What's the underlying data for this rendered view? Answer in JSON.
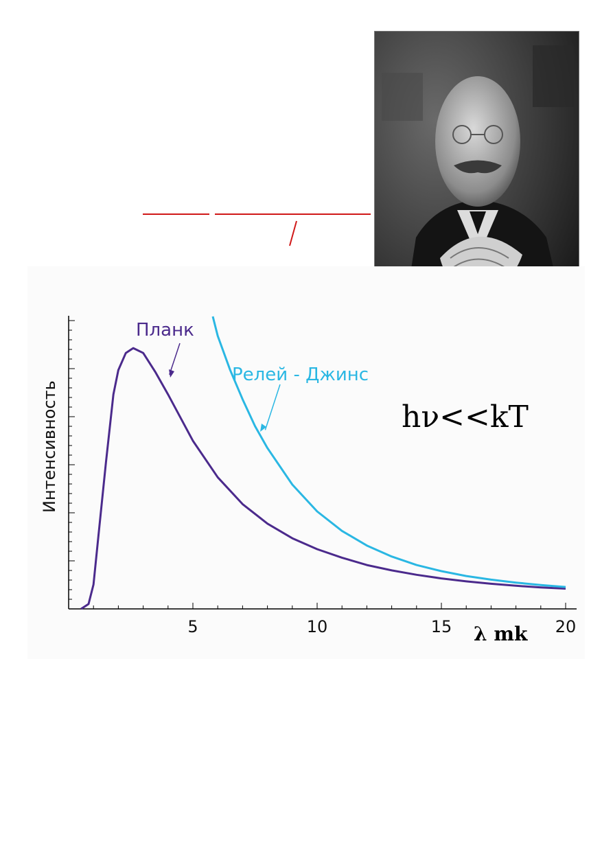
{
  "formula": "hν<<kT",
  "chart_data": {
    "type": "line",
    "title": "",
    "xlabel": "λ mk",
    "ylabel": "Интенсивность",
    "xlim": [
      0,
      20
    ],
    "ylim": [
      0,
      1.2
    ],
    "xticks": [
      5,
      10,
      15,
      20
    ],
    "grid": false,
    "series": [
      {
        "name": "Планк",
        "color": "#4b2a8c",
        "x": [
          0.5,
          0.8,
          1.0,
          1.2,
          1.5,
          1.8,
          2.0,
          2.3,
          2.6,
          3.0,
          3.5,
          4.0,
          5.0,
          6.0,
          7.0,
          8.0,
          9.0,
          10.0,
          11.0,
          12.0,
          13.0,
          14.0,
          15.0,
          16.0,
          17.0,
          18.0,
          19.0,
          20.0
        ],
        "y": [
          0.0,
          0.02,
          0.1,
          0.3,
          0.6,
          0.88,
          0.98,
          1.05,
          1.07,
          1.05,
          0.97,
          0.88,
          0.69,
          0.54,
          0.43,
          0.35,
          0.29,
          0.245,
          0.21,
          0.18,
          0.158,
          0.14,
          0.125,
          0.113,
          0.103,
          0.095,
          0.088,
          0.083
        ]
      },
      {
        "name": "Релей - Джинс",
        "color": "#2ab7e3",
        "x": [
          5.8,
          6.0,
          6.5,
          7.0,
          7.5,
          8.0,
          9.0,
          10.0,
          11.0,
          12.0,
          13.0,
          14.0,
          15.0,
          16.0,
          17.0,
          18.0,
          19.0,
          20.0
        ],
        "y": [
          1.2,
          1.12,
          0.98,
          0.86,
          0.75,
          0.66,
          0.51,
          0.4,
          0.32,
          0.26,
          0.215,
          0.18,
          0.155,
          0.135,
          0.12,
          0.108,
          0.098,
          0.09
        ]
      }
    ],
    "annotations": [
      {
        "text": "Планк",
        "series": "Планк",
        "arrow_to": [
          4.0,
          0.95
        ]
      },
      {
        "text": "Релей - Джинс",
        "series": "Релей - Джинс",
        "arrow_to": [
          7.8,
          0.72
        ]
      }
    ]
  }
}
